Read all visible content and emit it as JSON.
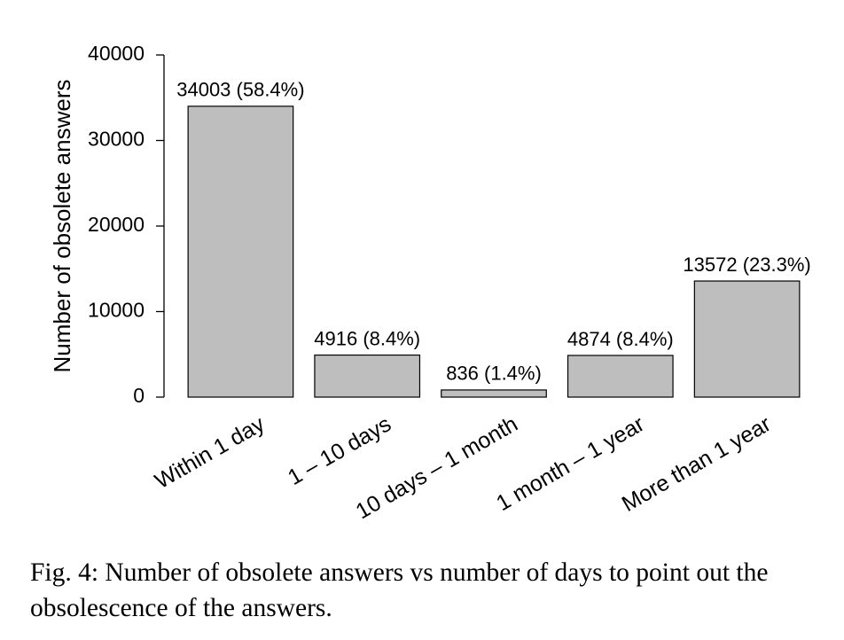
{
  "chart_data": {
    "type": "bar",
    "y_label": "Number of obsolete answers",
    "categories": [
      "Within 1 day",
      "1 – 10 days",
      "10 days – 1 month",
      "1 month – 1 year",
      "More than 1 year"
    ],
    "values": [
      34003,
      4916,
      836,
      4874,
      13572
    ],
    "value_labels": [
      "34003 (58.4%)",
      "4916 (8.4%)",
      "836 (1.4%)",
      "4874 (8.4%)",
      "13572 (23.3%)"
    ],
    "color": "#bebebe",
    "ylim": [
      0,
      40000
    ],
    "yticks": [
      0,
      10000,
      20000,
      30000,
      40000
    ],
    "grid": false,
    "caption": "Fig. 4: Number of obsolete answers vs number of days to point out the obsolescence of the answers."
  }
}
